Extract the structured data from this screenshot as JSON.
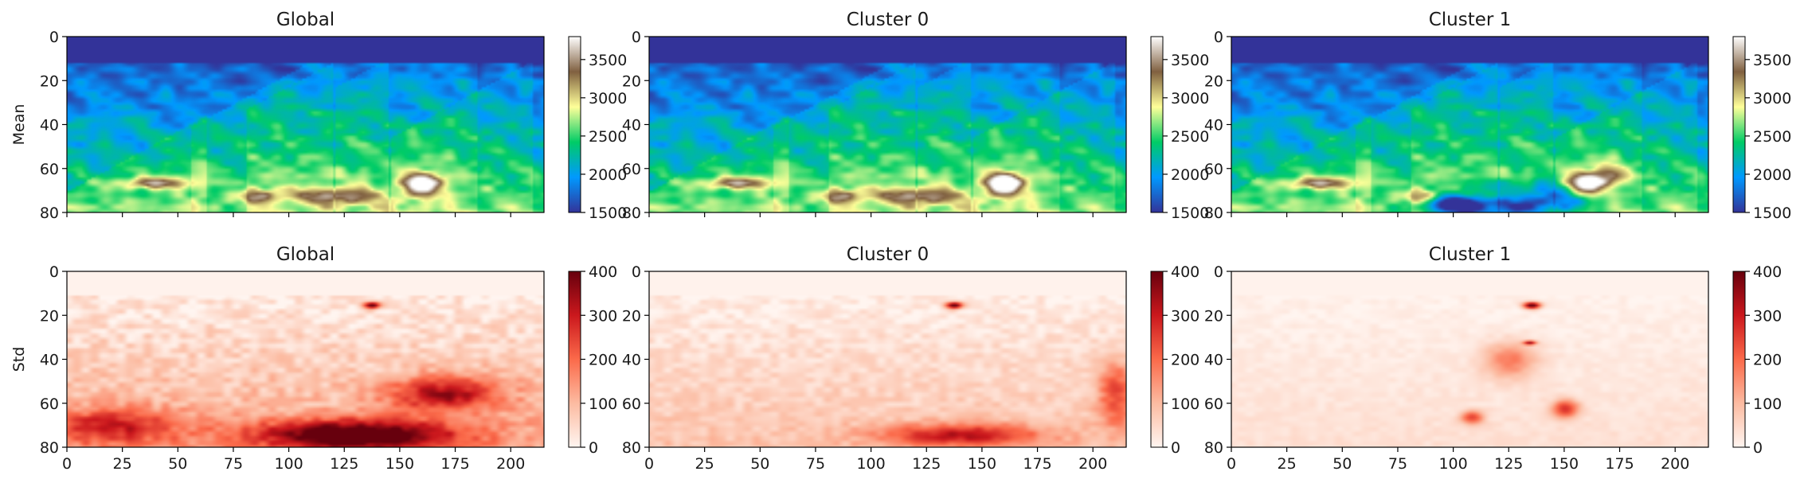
{
  "chart_data": {
    "type": "heatmap",
    "layout": "2x3 grid of heatmap panels, each with its own vertical colorbar on the right",
    "row_labels": [
      "Mean",
      "Std"
    ],
    "column_titles": [
      "Global",
      "Cluster 0",
      "Cluster 1"
    ],
    "x_ticks": [
      "0",
      "25",
      "50",
      "75",
      "100",
      "125",
      "150",
      "175",
      "200"
    ],
    "xlim": [
      0,
      215
    ],
    "y_ticks": [
      "0",
      "20",
      "40",
      "60",
      "80"
    ],
    "ylim": [
      80,
      0
    ],
    "rows": [
      {
        "label": "Mean",
        "colormap": "terrain",
        "colormap_stops": [
          "#333399",
          "#0099ff",
          "#00cc66",
          "#ffff99",
          "#806040",
          "#ffffff"
        ],
        "cbar_ticks": [
          "1500",
          "2000",
          "2500",
          "3000",
          "3500"
        ],
        "cbar_range": [
          1500,
          3800
        ]
      },
      {
        "label": "Std",
        "colormap": "reds",
        "colormap_stops": [
          "#fff5f0",
          "#fcbba1",
          "#fb6a4a",
          "#cb181d",
          "#67000d"
        ],
        "cbar_ticks": [
          "0",
          "100",
          "200",
          "300",
          "400"
        ],
        "cbar_range": [
          0,
          400
        ]
      }
    ],
    "panels": [
      {
        "row": "Mean",
        "title": "Global",
        "features": "water layer ~1500 at depth 0-12; blue->green velocity gradient with depth; dipping fault blocks; high-velocity salt bodies (~3500) near x 100-170 around depth 60-70"
      },
      {
        "row": "Mean",
        "title": "Cluster 0",
        "features": "nearly identical to Global with slightly sharper salt body near x 150-170"
      },
      {
        "row": "Mean",
        "title": "Cluster 1",
        "features": "similar structure with low-velocity (~1500) anomalies below depth 55 for x 90-170"
      },
      {
        "row": "Std",
        "title": "Global",
        "features": "std near 0 in water layer; hotspot ~400 near x 137, depth 15; high std (300-400) below depth 60 for x 80-190"
      },
      {
        "row": "Std",
        "title": "Cluster 0",
        "features": "lower std overall; hotspot near x 137, depth 15; moderate std at depth 60-80"
      },
      {
        "row": "Std",
        "title": "Cluster 1",
        "features": "mostly low std; localized spots near x 120-140 depth 15-35 and x 100-165 depth 55-70"
      }
    ]
  }
}
